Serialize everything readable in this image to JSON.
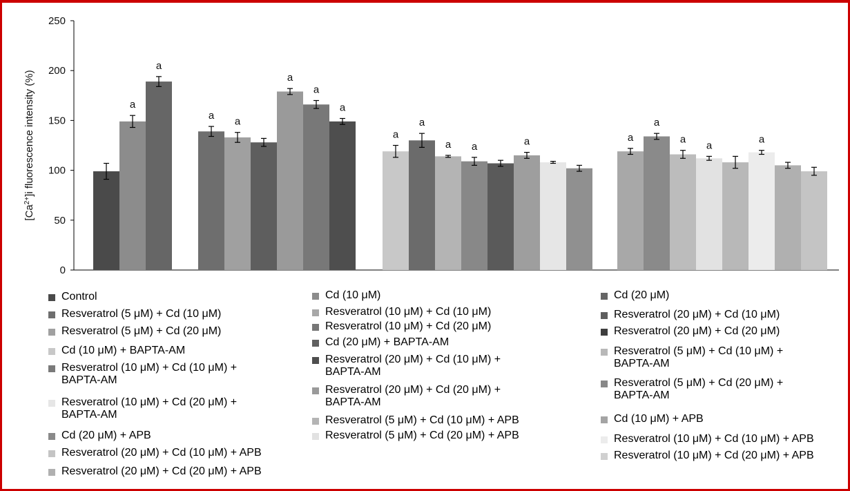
{
  "chart_data": {
    "type": "bar",
    "ylabel": "[Ca2+]i fluorescence intensity (%)",
    "ylim": [
      0,
      250
    ],
    "yticks": [
      0,
      50,
      100,
      150,
      200,
      250
    ],
    "groups": [
      {
        "bars": [
          {
            "value": 99,
            "err": 8,
            "label": "",
            "color": "#4a4a4a"
          },
          {
            "value": 149,
            "err": 6,
            "label": "a",
            "color": "#8c8c8c"
          },
          {
            "value": 189,
            "err": 5,
            "label": "a",
            "color": "#666666"
          }
        ]
      },
      {
        "bars": [
          {
            "value": 139,
            "err": 5,
            "label": "a",
            "color": "#6e6e6e"
          },
          {
            "value": 133,
            "err": 5,
            "label": "a",
            "color": "#a0a0a0"
          },
          {
            "value": 128,
            "err": 4,
            "label": "",
            "color": "#5e5e5e"
          },
          {
            "value": 179,
            "err": 3,
            "label": "a",
            "color": "#9a9a9a"
          },
          {
            "value": 166,
            "err": 4,
            "label": "a",
            "color": "#787878"
          },
          {
            "value": 149,
            "err": 3,
            "label": "a",
            "color": "#4e4e4e"
          }
        ]
      },
      {
        "bars": [
          {
            "value": 119,
            "err": 6,
            "label": "a",
            "color": "#c8c8c8"
          },
          {
            "value": 130,
            "err": 7,
            "label": "a",
            "color": "#6b6b6b"
          },
          {
            "value": 114,
            "err": 1,
            "label": "a",
            "color": "#b4b4b4"
          },
          {
            "value": 109,
            "err": 4,
            "label": "a",
            "color": "#888888"
          },
          {
            "value": 107,
            "err": 3,
            "label": "",
            "color": "#5a5a5a"
          },
          {
            "value": 115,
            "err": 3,
            "label": "a",
            "color": "#9e9e9e"
          },
          {
            "value": 108,
            "err": 1,
            "label": "",
            "color": "#e6e6e6"
          },
          {
            "value": 102,
            "err": 3,
            "label": "",
            "color": "#909090"
          }
        ]
      },
      {
        "bars": [
          {
            "value": 119,
            "err": 3,
            "label": "a",
            "color": "#a8a8a8"
          },
          {
            "value": 134,
            "err": 3,
            "label": "a",
            "color": "#8a8a8a"
          },
          {
            "value": 116,
            "err": 4,
            "label": "a",
            "color": "#bcbcbc"
          },
          {
            "value": 112,
            "err": 2,
            "label": "a",
            "color": "#e2e2e2"
          },
          {
            "value": 108,
            "err": 6,
            "label": "",
            "color": "#b8b8b8"
          },
          {
            "value": 118,
            "err": 2,
            "label": "a",
            "color": "#ececec"
          },
          {
            "value": 105,
            "err": 3,
            "label": "",
            "color": "#b0b0b0"
          },
          {
            "value": 99,
            "err": 4,
            "label": "",
            "color": "#c4c4c4"
          }
        ]
      }
    ]
  },
  "legend": {
    "columns": [
      [
        {
          "label": "Control",
          "color": "#4a4a4a"
        },
        {
          "label": "Resveratrol (5 μM) + Cd (10 μM)",
          "color": "#6e6e6e"
        },
        {
          "label": "Resveratrol (5 μM) + Cd (20 μM)",
          "color": "#a0a0a0"
        },
        {
          "label": "Cd (10 μM) + BAPTA-AM",
          "color": "#c8c8c8"
        },
        {
          "label": "Resveratrol (10 μM) + Cd (10 μM) +\nBAPTA-AM",
          "color": "#7a7a7a"
        },
        {
          "label": "Resveratrol (10 μM) + Cd (20 μM) +\nBAPTA-AM",
          "color": "#e6e6e6"
        },
        {
          "label": "Cd (20 μM) + APB",
          "color": "#8a8a8a"
        },
        {
          "label": "Resveratrol (20 μM) + Cd (10 μM) + APB",
          "color": "#c4c4c4"
        },
        {
          "label": "Resveratrol (20 μM) + Cd (20 μM) + APB",
          "color": "#b0b0b0"
        }
      ],
      [
        {
          "label": "Cd (10 μM)",
          "color": "#8c8c8c"
        },
        {
          "label": "Resveratrol (10 μM) + Cd (10 μM)",
          "color": "#a8a8a8"
        },
        {
          "label": "Resveratrol (10 μM) + Cd (20 μM)",
          "color": "#777777"
        },
        {
          "label": "Cd (20 μM) + BAPTA-AM",
          "color": "#606060"
        },
        {
          "label": "Resveratrol (20 μM) + Cd (10 μM) +\nBAPTA-AM",
          "color": "#4e4e4e"
        },
        {
          "label": "Resveratrol (20 μM) + Cd (20 μM) +\nBAPTA-AM",
          "color": "#9a9a9a"
        },
        {
          "label": "Resveratrol (5 μM) + Cd (10 μM) + APB",
          "color": "#b4b4b4"
        },
        {
          "label": "Resveratrol (5 μM) + Cd (20 μM) + APB",
          "color": "#e2e2e2"
        }
      ],
      [
        {
          "label": "Cd (20 μM)",
          "color": "#666666"
        },
        {
          "label": "Resveratrol (20 μM) + Cd (10 μM)",
          "color": "#5e5e5e"
        },
        {
          "label": "Resveratrol (20 μM) + Cd (20 μM)",
          "color": "#3e3e3e"
        },
        {
          "label": "Resveratrol (5 μM) + Cd (10 μM) +\nBAPTA-AM",
          "color": "#b8b8b8"
        },
        {
          "label": "Resveratrol (5 μM) + Cd (20 μM) +\nBAPTA-AM",
          "color": "#888888"
        },
        {
          "label": "Cd (10 μM) + APB",
          "color": "#a4a4a4"
        },
        {
          "label": "Resveratrol (10 μM) + Cd (10 μM) + APB",
          "color": "#ececec"
        },
        {
          "label": "Resveratrol (10 μM) + Cd (20 μM) + APB",
          "color": "#d0d0d0"
        }
      ]
    ]
  }
}
